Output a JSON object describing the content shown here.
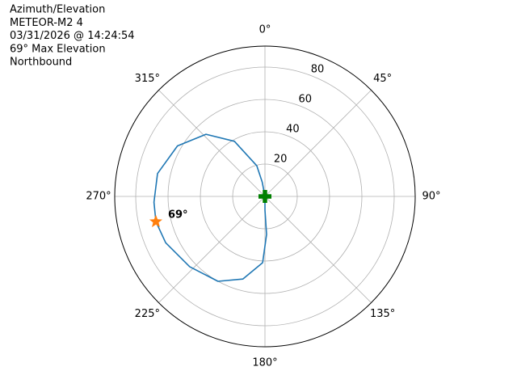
{
  "chart_data": {
    "type": "polar",
    "title_lines": [
      "Azimuth/Elevation",
      "METEOR-M2 4",
      "03/31/2026 @ 14:24:54",
      "69° Max Elevation",
      "Northbound"
    ],
    "theta_zero": "N",
    "theta_direction": "clockwise",
    "rlim": [
      0,
      93
    ],
    "rticks": [
      20,
      40,
      60,
      80
    ],
    "thetaticks": [
      {
        "value": 0,
        "label": "0°"
      },
      {
        "value": 45,
        "label": "45°"
      },
      {
        "value": 90,
        "label": "90°"
      },
      {
        "value": 135,
        "label": "135°"
      },
      {
        "value": 180,
        "label": "180°"
      },
      {
        "value": 225,
        "label": "225°"
      },
      {
        "value": 270,
        "label": "270°"
      },
      {
        "value": 315,
        "label": "315°"
      }
    ],
    "grid": true,
    "series": [
      {
        "color": "#1f77b4",
        "theta": [
          0,
          349,
          345,
          331,
          316.5,
          300,
          282,
          267,
          257,
          245,
          227,
          209,
          195,
          182,
          177.6,
          180,
          0
        ],
        "r": [
          0,
          9,
          19.6,
          39,
          53,
          62.5,
          68,
          68.8,
          69.3,
          67.8,
          63.7,
          60,
          52.9,
          41,
          23.5,
          8.5,
          0
        ]
      }
    ],
    "max_point": {
      "theta": 257,
      "r": 69.3,
      "label": "69°",
      "color": "#ff7f0e"
    },
    "start_point": {
      "theta": 0,
      "r": 0,
      "color": "#008000"
    }
  }
}
